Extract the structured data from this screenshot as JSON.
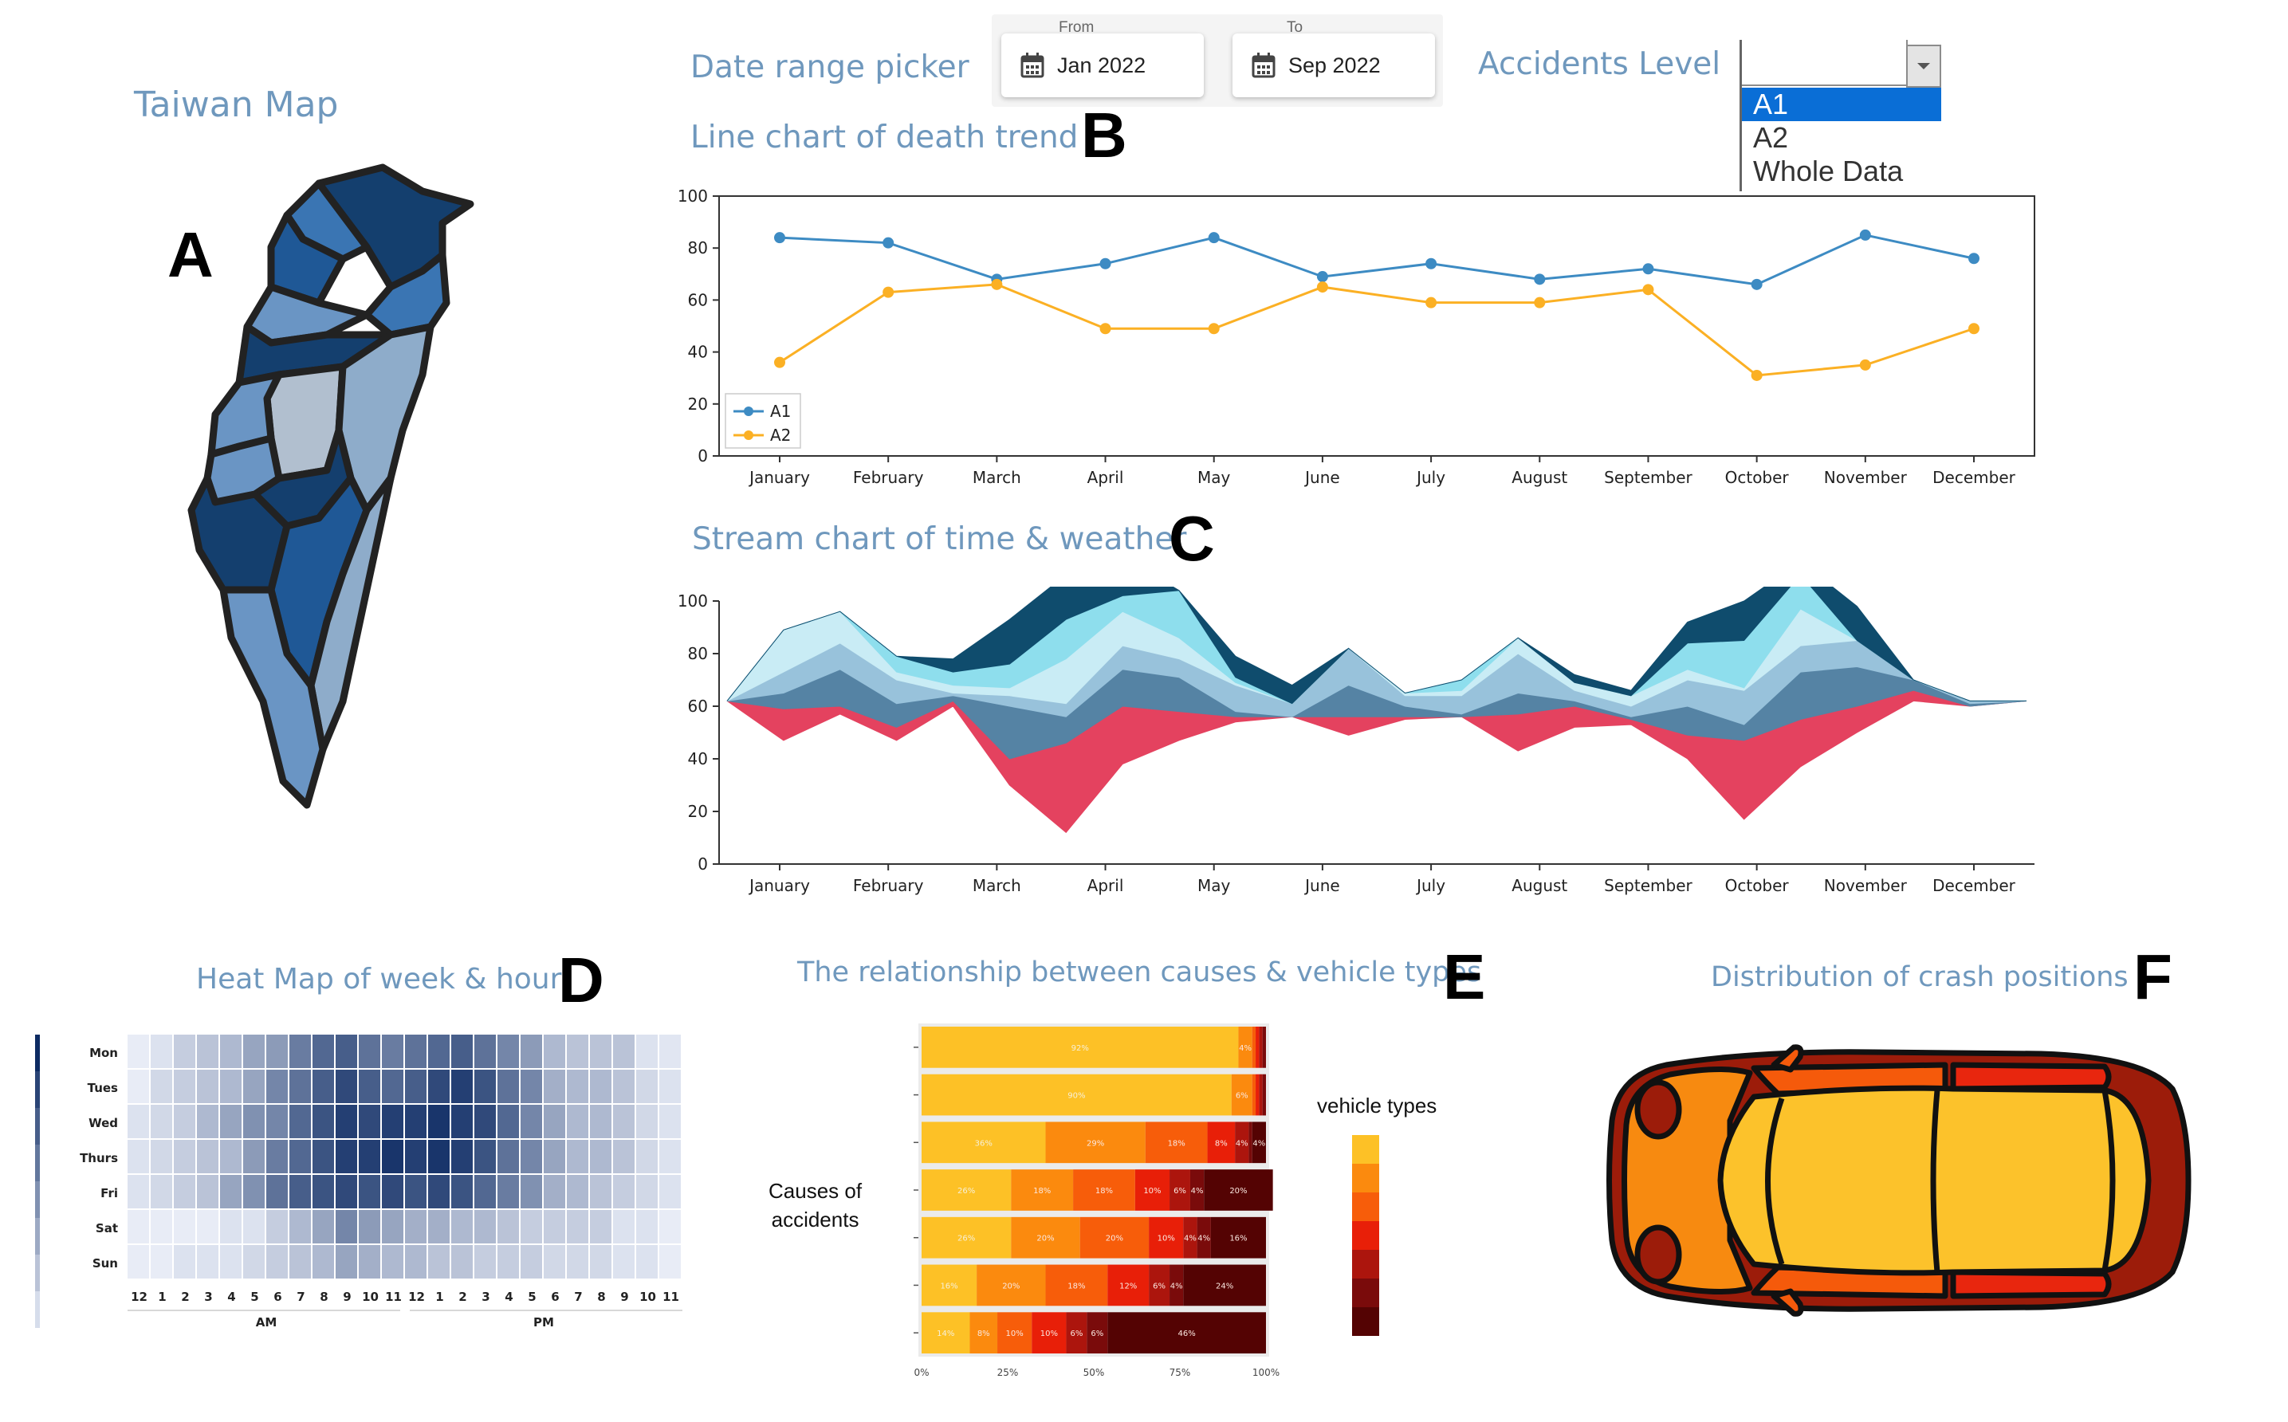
{
  "panels": {
    "map": {
      "title": "Taiwan Map",
      "letter": "A"
    },
    "date_range": {
      "title": "Date range picker",
      "from_caption": "From",
      "from_value": "Jan 2022",
      "to_caption": "To",
      "to_value": "Sep 2022"
    },
    "line": {
      "title": "Line chart of death trend",
      "letter": "B"
    },
    "accidents_level": {
      "title": "Accidents Level",
      "options": [
        "A1",
        "A2",
        "Whole Data"
      ],
      "selected": "A1"
    },
    "stream": {
      "title": "Stream chart of time & weather",
      "letter": "C"
    },
    "heatmap": {
      "title": "Heat Map of week & hour",
      "letter": "D"
    },
    "causes": {
      "title": "The relationship between causes & vehicle types",
      "letter": "E",
      "ylabel_line1": "Causes of",
      "ylabel_line2": "accidents",
      "legend_title": "vehicle types"
    },
    "crash": {
      "title": "Distribution of crash positions",
      "letter": "F"
    }
  },
  "colors": {
    "title": "#6f98bd",
    "map_shades": [
      "#143f6e",
      "#1f5896",
      "#3a75b3",
      "#6a95c4",
      "#8eacca",
      "#b1bfcf"
    ],
    "line_a1": "#3d8bc3",
    "line_a2": "#fbb024",
    "stream_layers": [
      "#e4425f",
      "#5583a4",
      "#98c2db",
      "#c9ecf5",
      "#8edeed",
      "#0f4c6d"
    ],
    "heat_low": "#f3f6fe",
    "heat_high": "#0d2b63",
    "stack": [
      "#fdc126",
      "#fb8a0e",
      "#f75d0a",
      "#e81f08",
      "#ac150d",
      "#7a0b0b",
      "#540303"
    ],
    "car_body": "#fcc22b",
    "car_mid": "#f78a10",
    "car_side": "#f55a0b",
    "car_red": "#e8260e",
    "car_dark": "#9c1c0a"
  },
  "chart_data": [
    {
      "type": "line",
      "categories": [
        "January",
        "February",
        "March",
        "April",
        "May",
        "June",
        "July",
        "August",
        "September",
        "October",
        "November",
        "December"
      ],
      "series": [
        {
          "name": "A1",
          "values": [
            84,
            82,
            68,
            74,
            84,
            69,
            74,
            68,
            72,
            66,
            85,
            76
          ]
        },
        {
          "name": "A2",
          "values": [
            36,
            63,
            66,
            49,
            49,
            65,
            59,
            59,
            64,
            31,
            35,
            49
          ]
        }
      ],
      "ylim": [
        0,
        100
      ],
      "yticks": [
        0,
        20,
        40,
        60,
        80,
        100
      ],
      "legend": "bottom-left",
      "grid": false
    },
    {
      "type": "area",
      "subtype": "stream",
      "x": [
        0,
        0.5,
        1,
        1.5,
        2,
        2.5,
        3,
        3.5,
        4,
        4.5,
        5,
        5.5,
        6,
        6.5,
        7,
        7.5,
        8,
        8.5,
        9,
        9.5,
        10,
        10.5,
        11,
        11.5
      ],
      "categories": [
        "January",
        "February",
        "March",
        "April",
        "May",
        "June",
        "July",
        "August",
        "September",
        "October",
        "November",
        "December"
      ],
      "baseline": [
        62,
        47,
        57,
        47,
        60,
        30,
        12,
        38,
        47,
        54,
        56,
        49,
        55,
        56,
        43,
        52,
        53,
        40,
        17,
        37,
        50,
        62,
        60,
        62
      ],
      "layer_thickness": [
        [
          0,
          12,
          3,
          5,
          2,
          10,
          34,
          22,
          11,
          2,
          0,
          7,
          1,
          0,
          14,
          8,
          2,
          9,
          30,
          18,
          10,
          4,
          0,
          0
        ],
        [
          0,
          6,
          14,
          9,
          2,
          20,
          10,
          14,
          13,
          2,
          0,
          12,
          4,
          1,
          8,
          2,
          1,
          11,
          6,
          18,
          15,
          4,
          1,
          0
        ],
        [
          0,
          8,
          10,
          9,
          1,
          4,
          5,
          9,
          7,
          10,
          5,
          14,
          4,
          7,
          15,
          4,
          4,
          10,
          13,
          10,
          10,
          0,
          1,
          0
        ],
        [
          0,
          16,
          12,
          3,
          3,
          3,
          17,
          13,
          8,
          1,
          0,
          0,
          1,
          2,
          6,
          3,
          4,
          4,
          1,
          14,
          0,
          0,
          0,
          0
        ],
        [
          0,
          0,
          0,
          6,
          5,
          9,
          15,
          6,
          18,
          2,
          0,
          0,
          0,
          4,
          0,
          0,
          0,
          10,
          18,
          13,
          0,
          0,
          0,
          0
        ],
        [
          0,
          0,
          0,
          0,
          5,
          17,
          17,
          15,
          0,
          8,
          7,
          0,
          0,
          0,
          0,
          3,
          2,
          8,
          15,
          5,
          13,
          0,
          0,
          0
        ]
      ],
      "ylim": [
        0,
        100
      ],
      "yticks": [
        0,
        20,
        40,
        60,
        80,
        100
      ]
    },
    {
      "type": "heatmap",
      "rows": [
        "Mon",
        "Tues",
        "Wed",
        "Thurs",
        "Fri",
        "Sat",
        "Sun"
      ],
      "columns": [
        "12",
        "1",
        "2",
        "3",
        "4",
        "5",
        "6",
        "7",
        "8",
        "9",
        "10",
        "11",
        "12",
        "1",
        "2",
        "3",
        "4",
        "5",
        "6",
        "7",
        "8",
        "9",
        "10",
        "11"
      ],
      "groups": [
        "AM",
        "PM"
      ],
      "values": [
        [
          0.05,
          0.1,
          0.2,
          0.25,
          0.3,
          0.4,
          0.45,
          0.6,
          0.7,
          0.75,
          0.65,
          0.6,
          0.65,
          0.7,
          0.75,
          0.65,
          0.55,
          0.45,
          0.3,
          0.25,
          0.25,
          0.25,
          0.1,
          0.08
        ],
        [
          0.05,
          0.15,
          0.2,
          0.25,
          0.3,
          0.4,
          0.55,
          0.65,
          0.75,
          0.85,
          0.75,
          0.7,
          0.75,
          0.85,
          0.9,
          0.8,
          0.65,
          0.55,
          0.35,
          0.3,
          0.3,
          0.25,
          0.15,
          0.1
        ],
        [
          0.1,
          0.15,
          0.2,
          0.3,
          0.4,
          0.5,
          0.55,
          0.7,
          0.8,
          0.9,
          0.85,
          0.9,
          0.9,
          0.95,
          0.9,
          0.85,
          0.7,
          0.55,
          0.4,
          0.3,
          0.3,
          0.25,
          0.15,
          0.1
        ],
        [
          0.1,
          0.15,
          0.2,
          0.25,
          0.3,
          0.45,
          0.6,
          0.7,
          0.8,
          0.9,
          0.9,
          0.95,
          0.9,
          0.95,
          0.9,
          0.8,
          0.65,
          0.55,
          0.4,
          0.3,
          0.3,
          0.25,
          0.15,
          0.1
        ],
        [
          0.1,
          0.15,
          0.2,
          0.25,
          0.4,
          0.5,
          0.65,
          0.75,
          0.8,
          0.85,
          0.8,
          0.85,
          0.8,
          0.85,
          0.8,
          0.7,
          0.6,
          0.5,
          0.35,
          0.3,
          0.25,
          0.2,
          0.15,
          0.1
        ],
        [
          0.05,
          0.05,
          0.05,
          0.05,
          0.1,
          0.1,
          0.2,
          0.3,
          0.4,
          0.55,
          0.45,
          0.4,
          0.35,
          0.35,
          0.3,
          0.3,
          0.25,
          0.2,
          0.2,
          0.2,
          0.2,
          0.1,
          0.1,
          0.05
        ],
        [
          0.05,
          0.05,
          0.1,
          0.1,
          0.1,
          0.15,
          0.2,
          0.25,
          0.3,
          0.4,
          0.35,
          0.3,
          0.3,
          0.25,
          0.25,
          0.2,
          0.2,
          0.2,
          0.15,
          0.15,
          0.15,
          0.1,
          0.1,
          0.05
        ]
      ]
    },
    {
      "type": "bar",
      "subtype": "stacked-100-horizontal",
      "rows": 7,
      "values": [
        [
          92,
          4,
          1,
          1,
          1,
          1,
          0
        ],
        [
          90,
          6,
          1,
          1,
          1,
          1,
          0
        ],
        [
          36,
          29,
          18,
          8,
          4,
          1,
          4
        ],
        [
          26,
          18,
          18,
          10,
          6,
          4,
          20
        ],
        [
          26,
          20,
          20,
          10,
          4,
          4,
          16
        ],
        [
          16,
          20,
          18,
          12,
          6,
          4,
          24
        ],
        [
          14,
          8,
          10,
          10,
          6,
          6,
          46
        ]
      ],
      "xticks": [
        "0%",
        "25%",
        "50%",
        "75%",
        "100%"
      ]
    }
  ]
}
